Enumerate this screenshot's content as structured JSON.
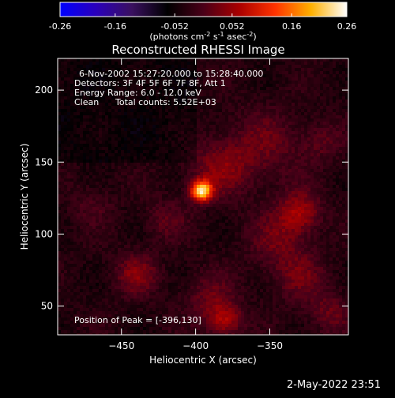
{
  "colorbar": {
    "ticks": [
      "-0.26",
      "-0.16",
      "-0.052",
      "0.052",
      "0.16",
      "0.26"
    ],
    "unit_parts": [
      "(photons cm",
      "-2",
      " s",
      "-1",
      " asec",
      "-2",
      ")"
    ],
    "colormap": [
      "#0000ff",
      "#2a00bb",
      "#3a1060",
      "#000000",
      "#4a0018",
      "#aa0000",
      "#ff3300",
      "#ffb000",
      "#ffffff"
    ]
  },
  "chart_data": {
    "type": "heatmap",
    "title": "Reconstructed RHESSI Image",
    "xlabel": "Heliocentric X (arcsec)",
    "ylabel": "Heliocentric Y (arcsec)",
    "xlim": [
      -493,
      -297
    ],
    "ylim": [
      30,
      222
    ],
    "xticks": [
      -450,
      -400,
      -350
    ],
    "yticks": [
      50,
      100,
      150,
      200
    ],
    "vrange": [
      -0.26,
      0.26
    ],
    "peak": {
      "x": -396,
      "y": 130
    },
    "sources": [
      {
        "x": -396,
        "y": 130,
        "sigma": 5,
        "amp": 0.26
      },
      {
        "x": -385,
        "y": 145,
        "sigma": 14,
        "amp": 0.06
      },
      {
        "x": -355,
        "y": 160,
        "sigma": 18,
        "amp": 0.05
      },
      {
        "x": -330,
        "y": 115,
        "sigma": 10,
        "amp": 0.09
      },
      {
        "x": -345,
        "y": 95,
        "sigma": 14,
        "amp": 0.05
      },
      {
        "x": -440,
        "y": 72,
        "sigma": 10,
        "amp": 0.07
      },
      {
        "x": -390,
        "y": 55,
        "sigma": 12,
        "amp": 0.05
      },
      {
        "x": -380,
        "y": 40,
        "sigma": 8,
        "amp": 0.09
      },
      {
        "x": -330,
        "y": 70,
        "sigma": 12,
        "amp": 0.05
      },
      {
        "x": -310,
        "y": 45,
        "sigma": 10,
        "amp": 0.05
      },
      {
        "x": -470,
        "y": 120,
        "sigma": 10,
        "amp": 0.03
      },
      {
        "x": -420,
        "y": 110,
        "sigma": 10,
        "amp": 0.04
      },
      {
        "x": -315,
        "y": 165,
        "sigma": 10,
        "amp": 0.04
      }
    ],
    "annotations": {
      "time": "6-Nov-2002 15:27:20.000 to 15:28:40.000",
      "detectors": "Detectors: 3F 4F 5F 6F 7F 8F, Att 1",
      "energy": "Energy Range: 6.0 - 12.0 keV",
      "method": "Clean",
      "counts": "Total counts: 5.52E+03",
      "peak_label": "Position of Peak = [-396,130]"
    }
  },
  "timestamp": "2-May-2022 23:51"
}
